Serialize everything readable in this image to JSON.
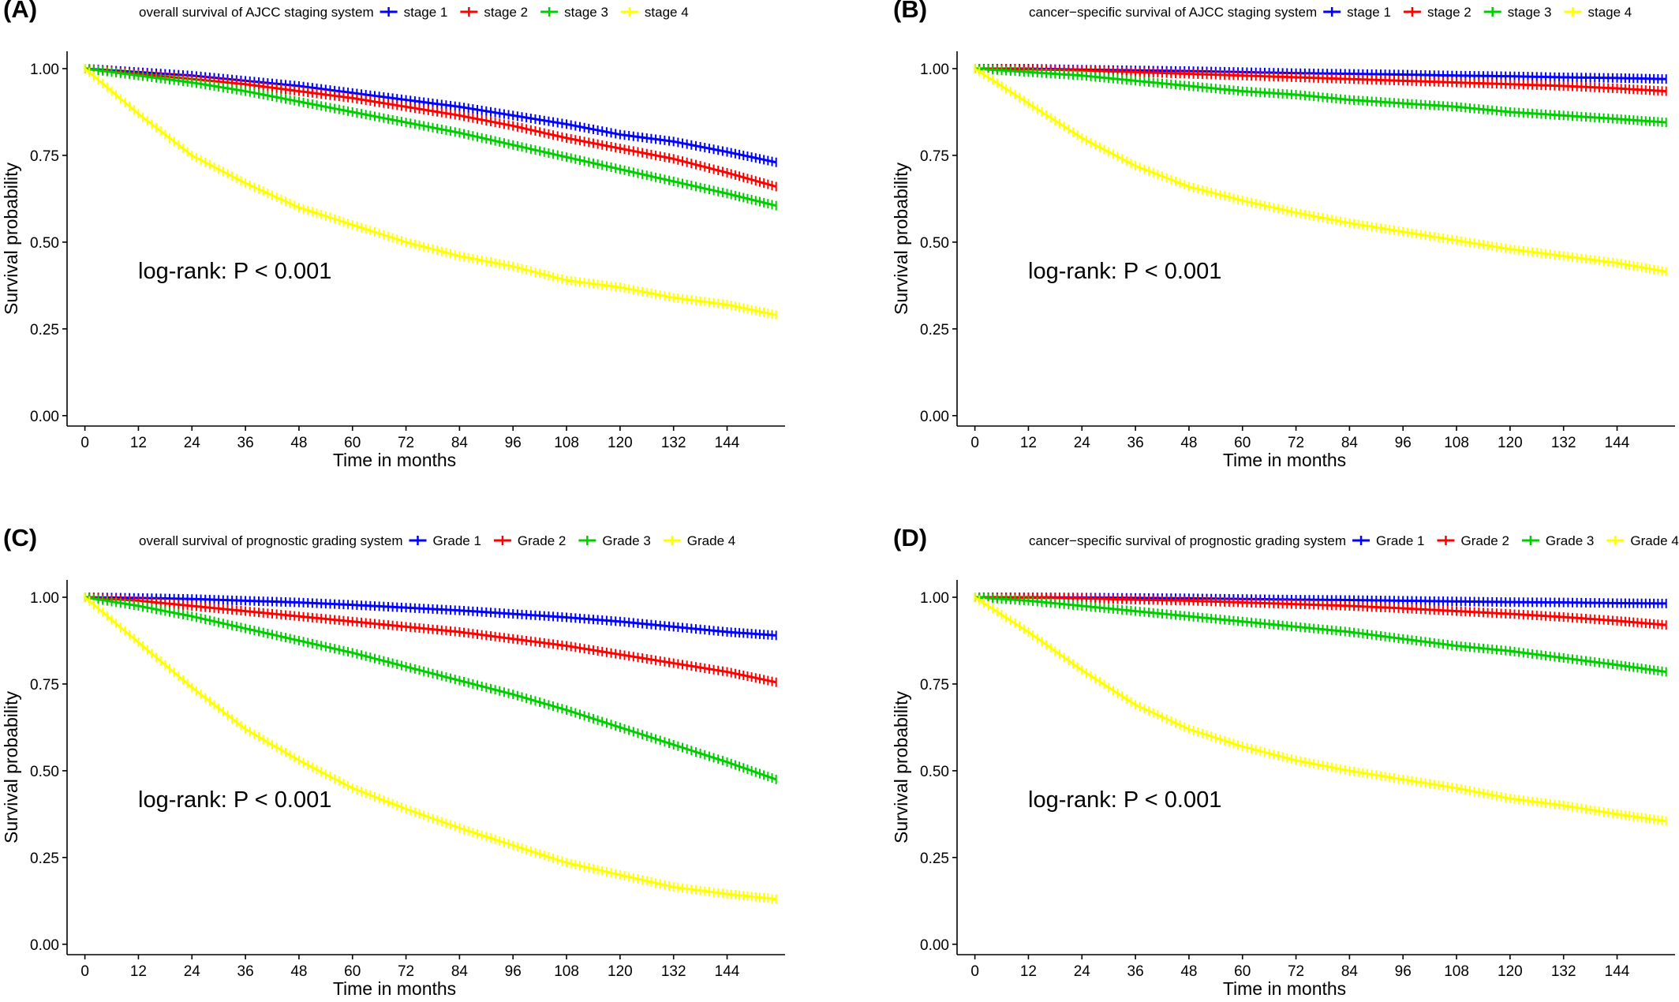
{
  "colors": {
    "blue": "#0000ff",
    "red": "#ff0000",
    "green": "#00cd00",
    "yellow": "#ffff00"
  },
  "chart_data": [
    {
      "panel": "(A)",
      "type": "line",
      "legend_title": "overall survival of AJCC staging system",
      "xlabel": "Time in months",
      "ylabel": "Survival probability",
      "xlim": [
        -4,
        157
      ],
      "ylim": [
        -0.03,
        1.05
      ],
      "xticks": [
        0,
        12,
        24,
        36,
        48,
        60,
        72,
        84,
        96,
        108,
        120,
        132,
        144
      ],
      "yticks": [
        "0.00",
        "0.25",
        "0.50",
        "0.75",
        "1.00"
      ],
      "annotation": "log-rank: P < 0.001",
      "legend_position": "top",
      "grid": false,
      "x": [
        0,
        12,
        24,
        36,
        48,
        60,
        72,
        84,
        96,
        108,
        120,
        132,
        144,
        155
      ],
      "series": [
        {
          "name": "stage 1",
          "color": "blue",
          "values": [
            1.0,
            0.99,
            0.98,
            0.965,
            0.95,
            0.93,
            0.91,
            0.89,
            0.865,
            0.84,
            0.81,
            0.79,
            0.76,
            0.73
          ]
        },
        {
          "name": "stage 2",
          "color": "red",
          "values": [
            1.0,
            0.985,
            0.97,
            0.955,
            0.935,
            0.915,
            0.89,
            0.865,
            0.835,
            0.8,
            0.77,
            0.74,
            0.7,
            0.66
          ]
        },
        {
          "name": "stage 3",
          "color": "green",
          "values": [
            1.0,
            0.98,
            0.96,
            0.935,
            0.905,
            0.875,
            0.845,
            0.815,
            0.78,
            0.745,
            0.71,
            0.675,
            0.64,
            0.605
          ]
        },
        {
          "name": "stage 4",
          "color": "yellow",
          "values": [
            1.0,
            0.87,
            0.75,
            0.67,
            0.6,
            0.55,
            0.5,
            0.46,
            0.43,
            0.39,
            0.37,
            0.34,
            0.32,
            0.29
          ]
        }
      ]
    },
    {
      "panel": "(B)",
      "type": "line",
      "legend_title": "cancer−specific survival of AJCC staging system",
      "xlabel": "Time in months",
      "ylabel": "Survival probability",
      "xlim": [
        -4,
        157
      ],
      "ylim": [
        -0.03,
        1.05
      ],
      "xticks": [
        0,
        12,
        24,
        36,
        48,
        60,
        72,
        84,
        96,
        108,
        120,
        132,
        144
      ],
      "yticks": [
        "0.00",
        "0.25",
        "0.50",
        "0.75",
        "1.00"
      ],
      "annotation": "log-rank: P < 0.001",
      "legend_position": "top",
      "grid": false,
      "x": [
        0,
        12,
        24,
        36,
        48,
        60,
        72,
        84,
        96,
        108,
        120,
        132,
        144,
        155
      ],
      "series": [
        {
          "name": "stage 1",
          "color": "blue",
          "values": [
            1.0,
            1.0,
            0.997,
            0.995,
            0.993,
            0.99,
            0.987,
            0.985,
            0.983,
            0.98,
            0.978,
            0.975,
            0.973,
            0.97
          ]
        },
        {
          "name": "stage 2",
          "color": "red",
          "values": [
            1.0,
            0.998,
            0.995,
            0.99,
            0.985,
            0.98,
            0.975,
            0.97,
            0.965,
            0.96,
            0.955,
            0.95,
            0.943,
            0.935
          ]
        },
        {
          "name": "stage 3",
          "color": "green",
          "values": [
            1.0,
            0.99,
            0.98,
            0.965,
            0.95,
            0.935,
            0.925,
            0.91,
            0.9,
            0.89,
            0.875,
            0.865,
            0.855,
            0.845
          ]
        },
        {
          "name": "stage 4",
          "color": "yellow",
          "values": [
            1.0,
            0.9,
            0.8,
            0.72,
            0.66,
            0.62,
            0.585,
            0.555,
            0.53,
            0.505,
            0.48,
            0.46,
            0.44,
            0.415
          ]
        }
      ]
    },
    {
      "panel": "(C)",
      "type": "line",
      "legend_title": "overall survival of prognostic grading system",
      "xlabel": "Time in months",
      "ylabel": "Survival probability",
      "xlim": [
        -4,
        157
      ],
      "ylim": [
        -0.03,
        1.05
      ],
      "xticks": [
        0,
        12,
        24,
        36,
        48,
        60,
        72,
        84,
        96,
        108,
        120,
        132,
        144
      ],
      "yticks": [
        "0.00",
        "0.25",
        "0.50",
        "0.75",
        "1.00"
      ],
      "annotation": "log-rank: P < 0.001",
      "legend_position": "top",
      "grid": false,
      "x": [
        0,
        12,
        24,
        36,
        48,
        60,
        72,
        84,
        96,
        108,
        120,
        132,
        144,
        155
      ],
      "series": [
        {
          "name": "Grade 1",
          "color": "blue",
          "values": [
            1.0,
            0.998,
            0.995,
            0.99,
            0.985,
            0.978,
            0.97,
            0.962,
            0.952,
            0.942,
            0.93,
            0.915,
            0.9,
            0.89
          ]
        },
        {
          "name": "Grade 2",
          "color": "red",
          "values": [
            1.0,
            0.99,
            0.975,
            0.96,
            0.945,
            0.93,
            0.915,
            0.9,
            0.88,
            0.86,
            0.835,
            0.81,
            0.785,
            0.755
          ]
        },
        {
          "name": "Grade 3",
          "color": "green",
          "values": [
            1.0,
            0.975,
            0.945,
            0.91,
            0.875,
            0.84,
            0.8,
            0.76,
            0.72,
            0.675,
            0.625,
            0.575,
            0.525,
            0.475
          ]
        },
        {
          "name": "Grade 4",
          "color": "yellow",
          "values": [
            1.0,
            0.87,
            0.74,
            0.62,
            0.53,
            0.45,
            0.39,
            0.335,
            0.285,
            0.235,
            0.2,
            0.165,
            0.145,
            0.13
          ]
        }
      ]
    },
    {
      "panel": "(D)",
      "type": "line",
      "legend_title": "cancer−specific survival of prognostic grading system",
      "xlabel": "Time in months",
      "ylabel": "Survival probability",
      "xlim": [
        -4,
        157
      ],
      "ylim": [
        -0.03,
        1.05
      ],
      "xticks": [
        0,
        12,
        24,
        36,
        48,
        60,
        72,
        84,
        96,
        108,
        120,
        132,
        144
      ],
      "yticks": [
        "0.00",
        "0.25",
        "0.50",
        "0.75",
        "1.00"
      ],
      "annotation": "log-rank: P < 0.001",
      "legend_position": "top",
      "grid": false,
      "x": [
        0,
        12,
        24,
        36,
        48,
        60,
        72,
        84,
        96,
        108,
        120,
        132,
        144,
        155
      ],
      "series": [
        {
          "name": "Grade 1",
          "color": "blue",
          "values": [
            1.0,
            1.0,
            0.999,
            0.998,
            0.997,
            0.995,
            0.993,
            0.992,
            0.99,
            0.988,
            0.986,
            0.985,
            0.983,
            0.982
          ]
        },
        {
          "name": "Grade 2",
          "color": "red",
          "values": [
            1.0,
            0.999,
            0.997,
            0.993,
            0.99,
            0.985,
            0.98,
            0.975,
            0.968,
            0.96,
            0.952,
            0.943,
            0.932,
            0.92
          ]
        },
        {
          "name": "Grade 3",
          "color": "green",
          "values": [
            1.0,
            0.99,
            0.975,
            0.96,
            0.945,
            0.93,
            0.915,
            0.9,
            0.88,
            0.86,
            0.845,
            0.825,
            0.805,
            0.785
          ]
        },
        {
          "name": "Grade 4",
          "color": "yellow",
          "values": [
            1.0,
            0.9,
            0.79,
            0.69,
            0.62,
            0.57,
            0.53,
            0.5,
            0.475,
            0.45,
            0.42,
            0.4,
            0.375,
            0.355
          ]
        }
      ]
    }
  ]
}
